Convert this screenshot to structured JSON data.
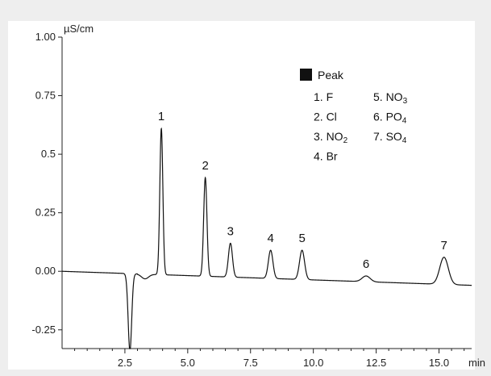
{
  "chart_data": {
    "type": "line",
    "title": "",
    "ylabel": "µS/cm",
    "xlabel": "min",
    "xlim": [
      0,
      16.3
    ],
    "ylim": [
      -0.33,
      1.0
    ],
    "x_ticks": [
      {
        "value": 2.5,
        "label": "2.5"
      },
      {
        "value": 5.0,
        "label": "5.0"
      },
      {
        "value": 7.5,
        "label": "7.5"
      },
      {
        "value": 10.0,
        "label": "10.0"
      },
      {
        "value": 12.5,
        "label": "12.5"
      },
      {
        "value": 15.0,
        "label": "15.0"
      }
    ],
    "y_ticks": [
      {
        "value": 1.0,
        "label": "1.00"
      },
      {
        "value": 0.75,
        "label": "0.75"
      },
      {
        "value": 0.5,
        "label": "0.5"
      },
      {
        "value": 0.25,
        "label": "0.25"
      },
      {
        "value": 0.0,
        "label": "0.00"
      },
      {
        "value": -0.25,
        "label": "-0.25"
      }
    ],
    "grid": false,
    "legend_position": "top-right",
    "baseline": {
      "start": 0.0,
      "end": -0.06,
      "dip_time": 2.7,
      "dip_min": -0.33,
      "recover_time": 3.6,
      "recover_value": -0.05
    },
    "peaks": [
      {
        "label": "1",
        "time": 3.95,
        "height": 0.61,
        "width": 0.06
      },
      {
        "label": "2",
        "time": 5.7,
        "height": 0.4,
        "width": 0.065
      },
      {
        "label": "3",
        "time": 6.7,
        "height": 0.12,
        "width": 0.08
      },
      {
        "label": "4",
        "time": 8.3,
        "height": 0.09,
        "width": 0.09
      },
      {
        "label": "5",
        "time": 9.55,
        "height": 0.09,
        "width": 0.1
      },
      {
        "label": "6",
        "time": 12.1,
        "height": -0.02,
        "width": 0.16
      },
      {
        "label": "7",
        "time": 15.2,
        "height": 0.06,
        "width": 0.17
      }
    ]
  },
  "legend": {
    "title": "Peak",
    "items": [
      {
        "text": "1. F"
      },
      {
        "text": "5. NO",
        "sub": "3"
      },
      {
        "text": "2. Cl"
      },
      {
        "text": "6. PO",
        "sub": "4"
      },
      {
        "text": "3. NO",
        "sub": "2"
      },
      {
        "text": "7. SO",
        "sub": "4"
      },
      {
        "text": "4. Br"
      }
    ]
  },
  "colors": {
    "background": "#eeeeee",
    "plot": "#ffffff",
    "line": "#111111",
    "legend_marker": "#111111"
  }
}
